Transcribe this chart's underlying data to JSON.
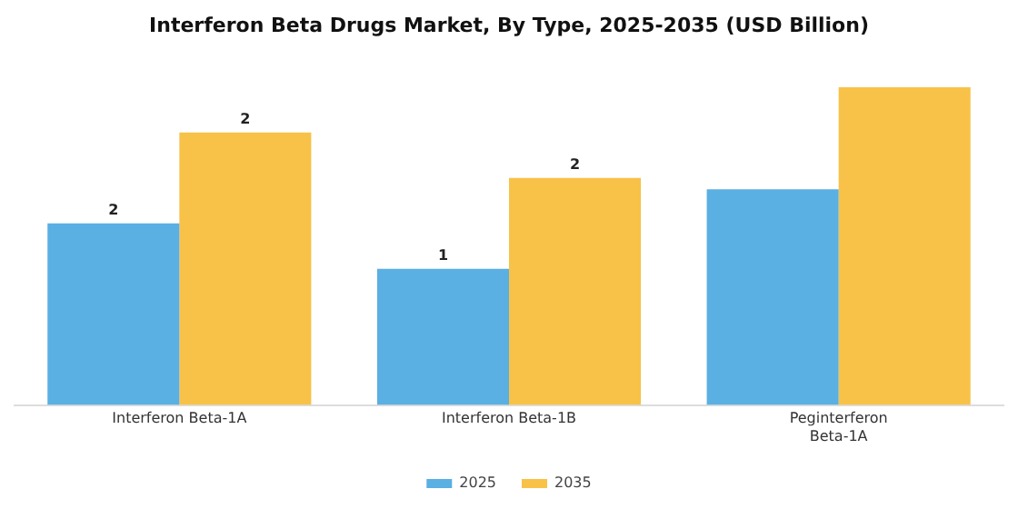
{
  "chart_data": {
    "type": "bar",
    "title": "Interferon Beta Drugs Market, By Type, 2025-2035 (USD Billion)",
    "categories": [
      "Interferon Beta-1A",
      "Interferon Beta-1B",
      "Peginterferon Beta-1A"
    ],
    "legend": "bottom",
    "grid": false,
    "series": [
      {
        "name": "2025",
        "color": "#5aafe3",
        "values": [
          1.6,
          1.2,
          1.9
        ],
        "value_labels": [
          "2",
          "1",
          null
        ]
      },
      {
        "name": "2035",
        "color": "#f7c247",
        "values": [
          2.4,
          2.0,
          2.8
        ],
        "value_labels": [
          "2",
          "2",
          null
        ]
      }
    ]
  }
}
